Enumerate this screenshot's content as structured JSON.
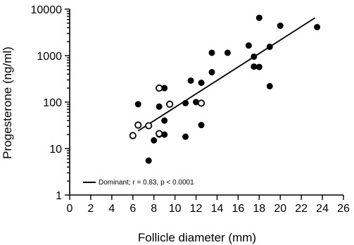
{
  "chart_data": {
    "type": "scatter",
    "xlabel": "Follicle diameter (mm)",
    "ylabel": "Progesterone (ng/ml)",
    "xlim": [
      0,
      26
    ],
    "ylim": [
      1,
      10000
    ],
    "yscale": "log",
    "x_ticks": [
      "0",
      "2",
      "4",
      "6",
      "8",
      "10",
      "12",
      "14",
      "16",
      "18",
      "20",
      "22",
      "24",
      "26"
    ],
    "y_ticks": [
      "1",
      "10",
      "100",
      "1000",
      "10000"
    ],
    "grid": false,
    "series": [
      {
        "marker": "filled-circle",
        "points": [
          [
            6.5,
            90
          ],
          [
            7.5,
            5.5
          ],
          [
            8.0,
            15
          ],
          [
            8.5,
            80
          ],
          [
            8.5,
            20
          ],
          [
            9.0,
            200
          ],
          [
            9.0,
            40
          ],
          [
            9.0,
            20
          ],
          [
            11.0,
            95
          ],
          [
            11.0,
            18
          ],
          [
            11.5,
            290
          ],
          [
            12.0,
            100
          ],
          [
            12.5,
            260
          ],
          [
            12.5,
            32
          ],
          [
            13.5,
            1150
          ],
          [
            13.5,
            440
          ],
          [
            15.0,
            1150
          ],
          [
            17.0,
            1650
          ],
          [
            17.5,
            950
          ],
          [
            17.5,
            580
          ],
          [
            18.0,
            6500
          ],
          [
            18.0,
            570
          ],
          [
            19.0,
            1550
          ],
          [
            19.0,
            220
          ],
          [
            20.0,
            4400
          ],
          [
            23.5,
            4100
          ]
        ]
      },
      {
        "marker": "open-circle",
        "points": [
          [
            6.0,
            19
          ],
          [
            6.5,
            32
          ],
          [
            7.5,
            31
          ],
          [
            8.5,
            200
          ],
          [
            8.5,
            21
          ],
          [
            9.5,
            90
          ],
          [
            12.5,
            95
          ]
        ]
      }
    ],
    "fit_line": {
      "x": [
        6.5,
        23.3
      ],
      "y": [
        24,
        6500
      ]
    },
    "legend": {
      "position": "bottom-left",
      "entry": "Dominant; r = 0.83, p < 0.0001"
    }
  }
}
